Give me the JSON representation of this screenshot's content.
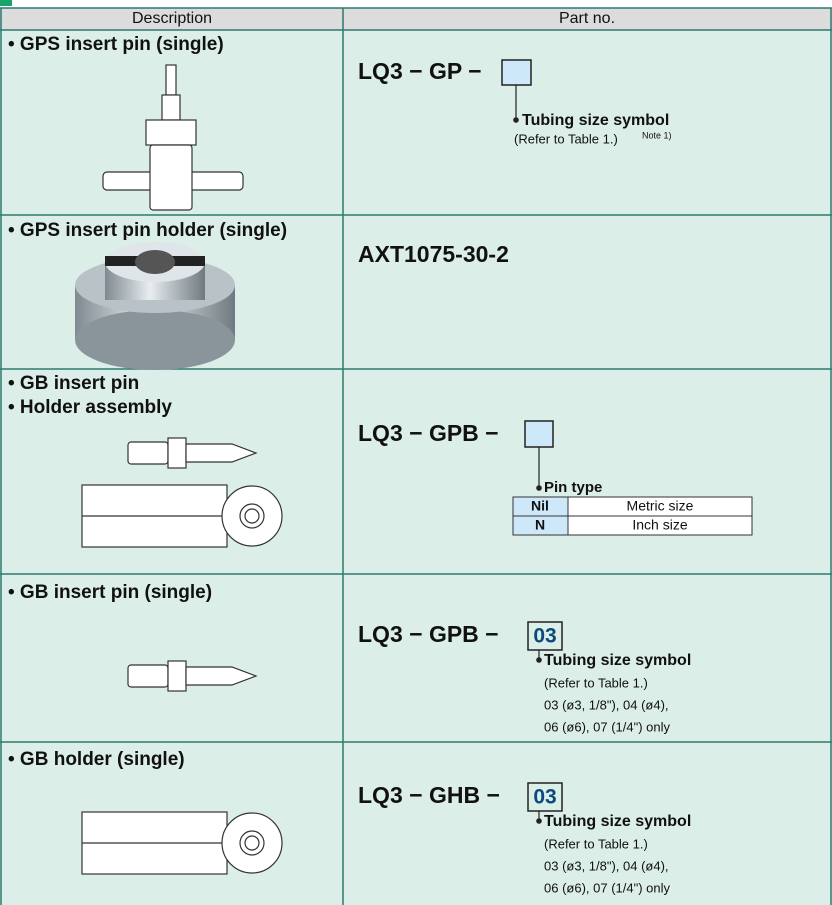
{
  "header": {
    "columns": [
      "Description",
      "Part no."
    ]
  },
  "rows": [
    {
      "description": [
        "• GPS insert pin (single)"
      ],
      "part_no": "LQ3 − GP −",
      "symbol": {
        "label": "Tubing size symbol",
        "notes": [
          "(Refer to Table 1.)"
        ],
        "superscript": "Note 1)"
      }
    },
    {
      "description": [
        "• GPS insert pin holder (single)"
      ],
      "part_no": "AXT1075-30-2"
    },
    {
      "description": [
        "• GB insert pin",
        "• Holder assembly"
      ],
      "part_no": "LQ3 − GPB −",
      "symbol": {
        "label": "Pin type",
        "table": [
          [
            "Nil",
            "Metric size"
          ],
          [
            "N",
            "Inch size"
          ]
        ]
      }
    },
    {
      "description": [
        "• GB insert pin (single)"
      ],
      "part_no": "LQ3 − GPB −",
      "box": "03",
      "symbol": {
        "label": "Tubing size symbol",
        "notes": [
          "(Refer to Table 1.)",
          "03 (ø3, 1/8\"), 04 (ø4),",
          "06 (ø6), 07 (1/4\") only"
        ]
      }
    },
    {
      "description": [
        "• GB holder (single)"
      ],
      "part_no": "LQ3 − GHB −",
      "box": "03",
      "symbol": {
        "label": "Tubing size symbol",
        "notes": [
          "(Refer to Table 1.)",
          "03 (ø3, 1/8\"), 04 (ø4),",
          "06 (ø6), 07 (1/4\") only"
        ]
      }
    }
  ]
}
